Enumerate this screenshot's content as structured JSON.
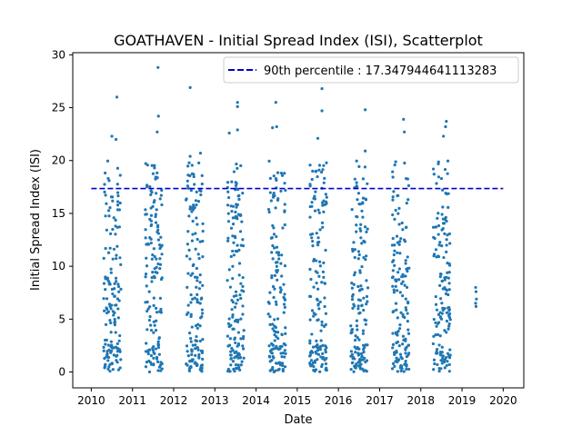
{
  "chart_data": {
    "type": "scatter",
    "title": "GOATHAVEN - Initial Spread Index (ISI), Scatterplot",
    "xlabel": "Date",
    "ylabel": "Initial Spread Index (ISI)",
    "xlim": [
      2009.55,
      2020.5
    ],
    "ylim": [
      -1.5,
      30.2
    ],
    "x_ticks": [
      "2010",
      "2011",
      "2012",
      "2013",
      "2014",
      "2015",
      "2016",
      "2017",
      "2018",
      "2019",
      "2020"
    ],
    "y_ticks": [
      "0",
      "5",
      "10",
      "15",
      "20",
      "25",
      "30"
    ],
    "legend_position": "top-right",
    "grid": false,
    "series": [
      {
        "kind": "points",
        "color": "#1f77b4",
        "seasons": [
          {
            "year": 2010,
            "start": 2010.3,
            "end": 2010.72
          },
          {
            "year": 2011,
            "start": 2011.3,
            "end": 2011.72
          },
          {
            "year": 2012,
            "start": 2012.3,
            "end": 2012.72
          },
          {
            "year": 2013,
            "start": 2013.3,
            "end": 2013.72
          },
          {
            "year": 2014,
            "start": 2014.3,
            "end": 2014.72
          },
          {
            "year": 2015,
            "start": 2015.3,
            "end": 2015.72
          },
          {
            "year": 2016,
            "start": 2016.3,
            "end": 2016.72
          },
          {
            "year": 2017,
            "start": 2017.3,
            "end": 2017.72
          },
          {
            "year": 2018,
            "start": 2018.3,
            "end": 2018.72
          },
          {
            "year": 2019,
            "start": 2019.32,
            "end": 2019.36
          }
        ],
        "outliers": [
          {
            "x": 2010.62,
            "y": 26.0
          },
          {
            "x": 2010.5,
            "y": 22.3
          },
          {
            "x": 2010.6,
            "y": 22.0
          },
          {
            "x": 2011.62,
            "y": 28.8
          },
          {
            "x": 2011.63,
            "y": 24.2
          },
          {
            "x": 2011.6,
            "y": 22.7
          },
          {
            "x": 2012.4,
            "y": 26.9
          },
          {
            "x": 2012.4,
            "y": 20.4
          },
          {
            "x": 2012.65,
            "y": 20.7
          },
          {
            "x": 2013.35,
            "y": 22.6
          },
          {
            "x": 2013.55,
            "y": 25.5
          },
          {
            "x": 2013.55,
            "y": 25.1
          },
          {
            "x": 2013.55,
            "y": 22.9
          },
          {
            "x": 2014.48,
            "y": 25.5
          },
          {
            "x": 2014.5,
            "y": 23.2
          },
          {
            "x": 2014.4,
            "y": 23.1
          },
          {
            "x": 2015.6,
            "y": 26.8
          },
          {
            "x": 2015.6,
            "y": 24.7
          },
          {
            "x": 2015.5,
            "y": 22.1
          },
          {
            "x": 2016.65,
            "y": 24.8
          },
          {
            "x": 2016.65,
            "y": 20.9
          },
          {
            "x": 2017.58,
            "y": 23.9
          },
          {
            "x": 2017.6,
            "y": 22.7
          },
          {
            "x": 2018.62,
            "y": 23.7
          },
          {
            "x": 2018.6,
            "y": 23.2
          },
          {
            "x": 2018.55,
            "y": 22.3
          }
        ],
        "late_points": [
          {
            "x": 2019.33,
            "y": 8.0
          },
          {
            "x": 2019.34,
            "y": 7.6
          },
          {
            "x": 2019.35,
            "y": 6.9
          },
          {
            "x": 2019.33,
            "y": 6.5
          },
          {
            "x": 2019.34,
            "y": 6.2
          }
        ]
      },
      {
        "name": "90th percentile : 17.347944641113283",
        "kind": "hline",
        "y": 17.347944641113283,
        "color": "#0000cc",
        "style": "dashed"
      }
    ]
  }
}
